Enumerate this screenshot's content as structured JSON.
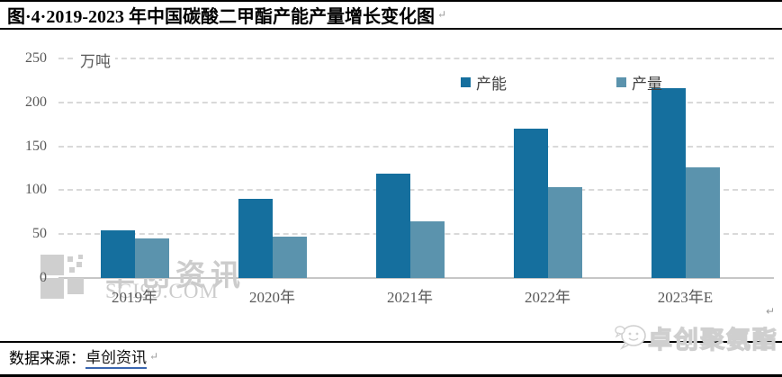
{
  "title": {
    "text": "图·4·2019-2023 年中国碳酸二甲酯产能产量增长变化图",
    "paragraph_mark": "↵"
  },
  "chart_data": {
    "type": "bar",
    "title": "2019-2023 年中国碳酸二甲酯产能产量增长变化图",
    "unit_label": "万吨",
    "categories": [
      "2019年",
      "2020年",
      "2021年",
      "2022年",
      "2023年E"
    ],
    "series": [
      {
        "name": "产能",
        "color": "#156f9e",
        "values": [
          54,
          90,
          119,
          170,
          216
        ]
      },
      {
        "name": "产量",
        "color": "#5b93ad",
        "values": [
          45,
          47,
          65,
          104,
          126
        ]
      }
    ],
    "y_ticks": [
      250,
      200,
      150,
      100,
      50,
      0
    ],
    "ylim": [
      0,
      250
    ],
    "grid": "horizontal dashed gridlines at 50-unit intervals",
    "legend_position": "top-center",
    "xlabel": "",
    "ylabel": "万吨"
  },
  "watermarks": {
    "left": {
      "line1": "卓创资讯",
      "line2": "SCI99.COM"
    },
    "bottom_right": {
      "text": "卓创聚氨酯",
      "icon": "chat-emoji"
    }
  },
  "footer": {
    "label": "数据来源：",
    "link": "卓创资讯",
    "paragraph_mark": "↵"
  },
  "chart_end_mark": "↵",
  "colors": {
    "capacity_bar": "#156f9e",
    "production_bar": "#5b93ad",
    "gridline": "#d9d9d9",
    "axis_line": "#c6c6c6",
    "tick_text": "#595959",
    "link_underline": "#3a66b0",
    "watermark": "#cccccc"
  }
}
